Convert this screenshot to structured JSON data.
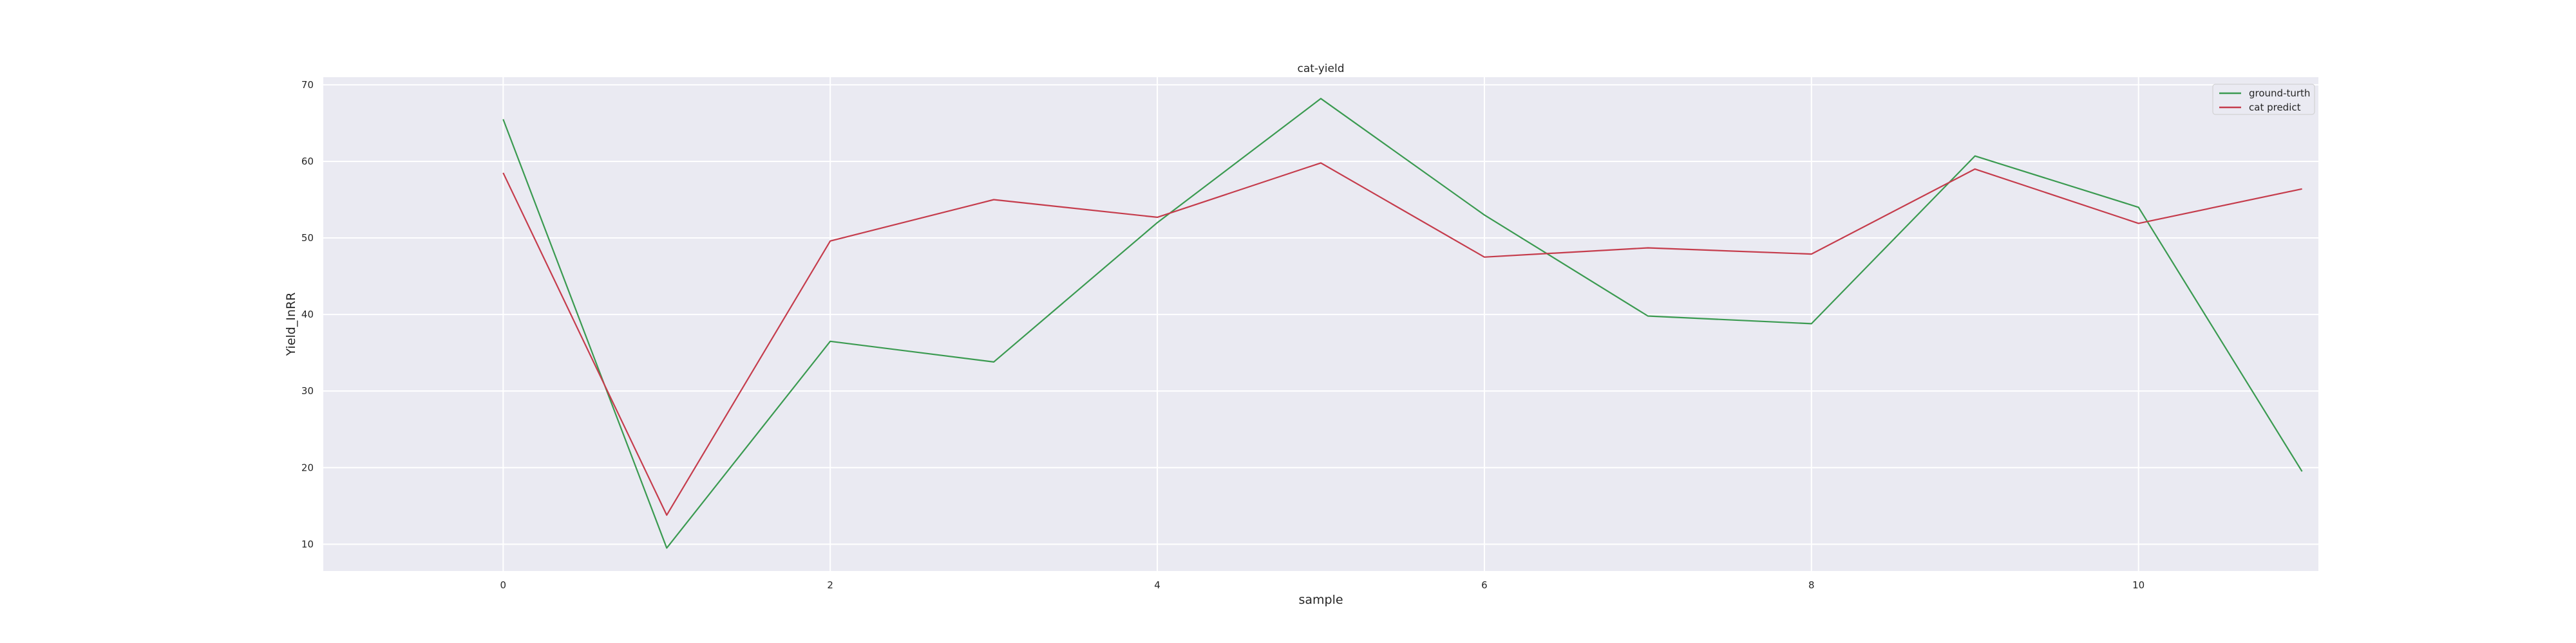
{
  "chart_data": {
    "type": "line",
    "title": "cat-yield",
    "xlabel": "sample",
    "ylabel": "Yield_InRR",
    "x": [
      0,
      1,
      2,
      3,
      4,
      5,
      6,
      7,
      8,
      9,
      10,
      11
    ],
    "xlim": [
      -1.1,
      11.1
    ],
    "ylim": [
      6.5,
      71
    ],
    "xticks": [
      0,
      2,
      4,
      6,
      8,
      10
    ],
    "yticks": [
      10,
      20,
      30,
      40,
      50,
      60,
      70
    ],
    "grid": true,
    "legend_position": "top-right",
    "series": [
      {
        "name": "ground-turth",
        "color": "#3a9a50",
        "values": [
          65.5,
          9.5,
          36.5,
          33.8,
          52.0,
          68.2,
          53.0,
          39.8,
          38.8,
          60.7,
          54.0,
          19.5
        ]
      },
      {
        "name": "cat predict",
        "color": "#c53c4c",
        "values": [
          58.5,
          13.8,
          49.6,
          55.0,
          52.7,
          59.8,
          47.5,
          48.7,
          47.9,
          59.0,
          51.9,
          56.4
        ]
      }
    ],
    "colors": {
      "plot_background": "#eaeaf2",
      "grid": "#ffffff",
      "text": "#262626"
    }
  }
}
